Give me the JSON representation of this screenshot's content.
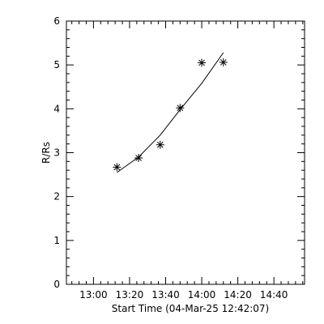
{
  "chart_data": {
    "type": "scatter",
    "title": "",
    "xlabel": "Start Time (04-Mar-25 12:42:07)",
    "ylabel": "R/Rs",
    "x_ticks": [
      "13:00",
      "13:20",
      "13:40",
      "14:00",
      "14:20",
      "14:40"
    ],
    "y_ticks": [
      "0",
      "1",
      "2",
      "3",
      "4",
      "5",
      "6"
    ],
    "xlim": [
      "12:45",
      "14:57"
    ],
    "ylim": [
      0,
      6
    ],
    "grid": false,
    "legend": "none",
    "marker": "asterisk",
    "series": [
      {
        "points": [
          {
            "x": "13:13",
            "y": 2.67
          },
          {
            "x": "13:25",
            "y": 2.88
          },
          {
            "x": "13:37",
            "y": 3.18
          },
          {
            "x": "13:48",
            "y": 4.02
          },
          {
            "x": "14:00",
            "y": 5.05
          },
          {
            "x": "14:12",
            "y": 5.06
          }
        ]
      }
    ],
    "fit": {
      "type": "quadratic",
      "points": [
        {
          "x": "13:13",
          "y": 2.55
        },
        {
          "x": "13:25",
          "y": 2.9
        },
        {
          "x": "13:37",
          "y": 3.4
        },
        {
          "x": "13:48",
          "y": 3.98
        },
        {
          "x": "14:00",
          "y": 4.58
        },
        {
          "x": "14:12",
          "y": 5.28
        }
      ]
    },
    "colors": {
      "foreground": "#000000",
      "background": "#ffffff"
    }
  }
}
